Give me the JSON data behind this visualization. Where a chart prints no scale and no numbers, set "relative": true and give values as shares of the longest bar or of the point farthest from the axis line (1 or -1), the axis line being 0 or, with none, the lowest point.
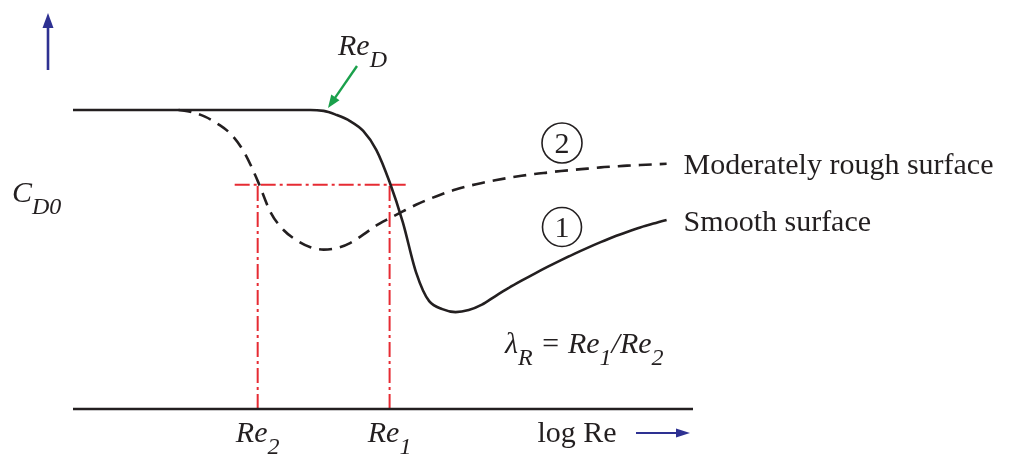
{
  "chart_data": {
    "type": "line",
    "relative": true,
    "xlabel": "log Re",
    "ylabel": "C$_{D0}$",
    "categories": [
      null,
      null,
      null,
      null,
      null,
      null,
      null,
      null,
      null,
      null,
      null,
      null,
      null,
      null,
      "Re$_{2}$",
      null,
      null,
      null,
      null,
      null,
      null,
      null,
      null,
      null,
      "Re$_{1}$",
      null,
      null,
      null,
      null,
      null,
      null,
      null,
      null,
      null,
      null,
      null,
      null,
      null,
      null,
      null,
      null,
      null,
      null,
      null,
      null,
      null,
      null,
      null
    ],
    "series": [
      {
        "name": "Smooth surface",
        "color": "#231f20",
        "line_style": "solid",
        "values": [
          1.0,
          1.0,
          1.0,
          1.0,
          1.0,
          1.0,
          1.0,
          1.0,
          1.0,
          1.0,
          1.0,
          1.0,
          1.0,
          1.0,
          1.0,
          1.0,
          1.0,
          1.0,
          1.0,
          0.997,
          0.983,
          0.963,
          0.93,
          0.866,
          0.759,
          0.625,
          0.458,
          0.361,
          0.334,
          0.324,
          0.331,
          0.349,
          0.377,
          0.404,
          0.429,
          0.453,
          0.476,
          0.498,
          0.519,
          0.539,
          0.558,
          0.576,
          0.592,
          0.607,
          0.62,
          0.632,
          null,
          null
        ]
      },
      {
        "name": "Moderately rough surface",
        "color": "#231f20",
        "line_style": "dashed",
        "values": [
          null,
          null,
          null,
          null,
          null,
          null,
          null,
          null,
          1.0,
          0.993,
          0.978,
          0.953,
          0.918,
          0.857,
          0.763,
          0.656,
          0.597,
          0.563,
          0.541,
          0.533,
          0.538,
          0.555,
          0.583,
          0.614,
          0.638,
          0.661,
          0.683,
          0.702,
          0.719,
          0.734,
          0.746,
          0.756,
          0.765,
          0.773,
          0.78,
          0.786,
          0.791,
          0.796,
          0.8,
          0.804,
          0.808,
          0.811,
          0.814,
          0.816,
          0.818,
          0.82,
          null,
          null
        ]
      }
    ],
    "ref_lines": [
      {
        "axis": "y",
        "value": 0.75,
        "color": "#e62b33",
        "line_style": "dashed"
      },
      {
        "axis": "x",
        "value": "Re$_{2}$",
        "color": "#e62b33",
        "line_style": "dashed"
      },
      {
        "axis": "x",
        "value": "Re$_{1}$",
        "color": "#e62b33",
        "line_style": "dashed"
      }
    ],
    "annotations": [
      "Re$_{D}$",
      "2",
      "1",
      "λ$_{R}$ = Re$_{1}$/Re$_{2}$"
    ]
  }
}
